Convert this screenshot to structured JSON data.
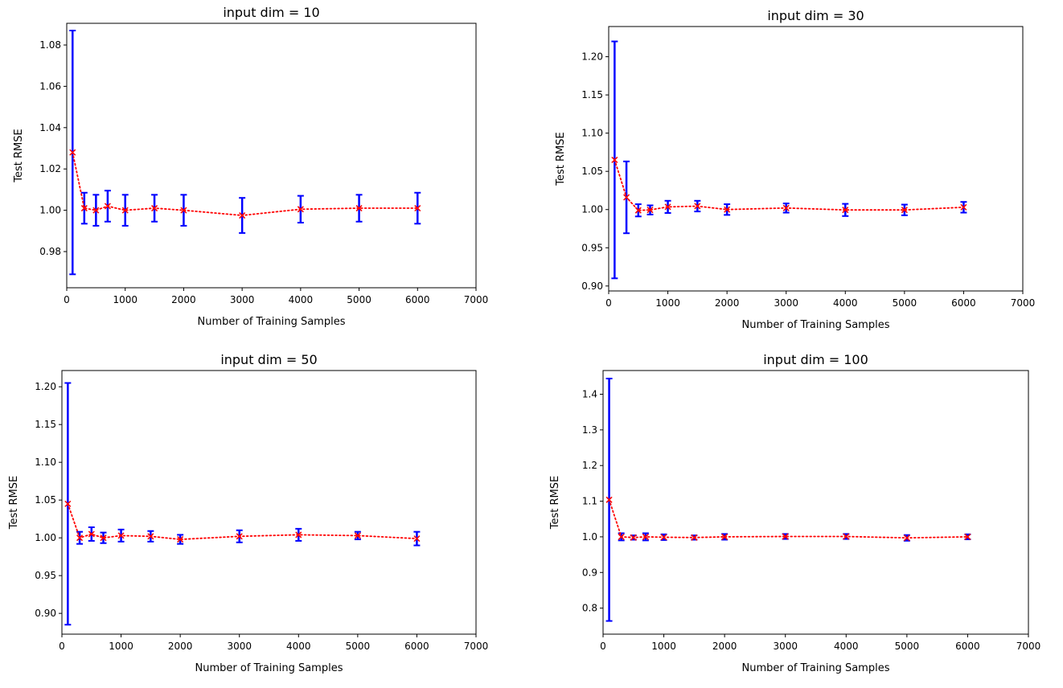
{
  "chart_data": [
    {
      "type": "scatter",
      "title": "input dim = 10",
      "xlabel": "Number of Training Samples",
      "ylabel": "Test RMSE",
      "xlim": [
        0,
        7000
      ],
      "ylim": [
        0.9625,
        1.0905
      ],
      "xticks": [
        "0",
        "1000",
        "2000",
        "3000",
        "4000",
        "5000",
        "6000",
        "7000"
      ],
      "yticks": [
        "0.98",
        "1.00",
        "1.02",
        "1.04",
        "1.06",
        "1.08"
      ],
      "grid": false,
      "marker_color": "#ff0000",
      "errorbar_color": "#0000ff",
      "series": [
        {
          "x": [
            100,
            300,
            500,
            700,
            1000,
            1500,
            2000,
            3000,
            4000,
            5000,
            6000
          ],
          "y": [
            1.028,
            1.001,
            1.0,
            1.002,
            1.0,
            1.001,
            1.0,
            0.9975,
            1.0005,
            1.001,
            1.001
          ],
          "err": [
            0.059,
            0.0075,
            0.0075,
            0.0075,
            0.0075,
            0.0065,
            0.0075,
            0.0085,
            0.0065,
            0.0065,
            0.0075
          ]
        }
      ]
    },
    {
      "type": "scatter",
      "title": "input dim = 30",
      "xlabel": "Number of Training Samples",
      "ylabel": "Test RMSE",
      "xlim": [
        0,
        7000
      ],
      "ylim": [
        0.8935,
        1.2395
      ],
      "xticks": [
        "0",
        "1000",
        "2000",
        "3000",
        "4000",
        "5000",
        "6000",
        "7000"
      ],
      "yticks": [
        "0.90",
        "0.95",
        "1.00",
        "1.05",
        "1.10",
        "1.15",
        "1.20"
      ],
      "grid": false,
      "marker_color": "#ff0000",
      "errorbar_color": "#0000ff",
      "series": [
        {
          "x": [
            100,
            300,
            500,
            700,
            1000,
            1500,
            2000,
            3000,
            4000,
            5000,
            6000
          ],
          "y": [
            1.065,
            1.016,
            0.999,
            0.9995,
            1.0035,
            1.0045,
            1.0,
            1.002,
            0.9995,
            0.9995,
            1.003
          ],
          "err": [
            0.155,
            0.047,
            0.008,
            0.006,
            0.008,
            0.007,
            0.007,
            0.006,
            0.008,
            0.007,
            0.007
          ]
        }
      ]
    },
    {
      "type": "scatter",
      "title": "input dim = 50",
      "xlabel": "Number of Training Samples",
      "ylabel": "Test RMSE",
      "xlim": [
        0,
        7000
      ],
      "ylim": [
        0.8725,
        1.2215
      ],
      "xticks": [
        "0",
        "1000",
        "2000",
        "3000",
        "4000",
        "5000",
        "6000",
        "7000"
      ],
      "yticks": [
        "0.90",
        "0.95",
        "1.00",
        "1.05",
        "1.10",
        "1.15",
        "1.20"
      ],
      "grid": false,
      "marker_color": "#ff0000",
      "errorbar_color": "#0000ff",
      "series": [
        {
          "x": [
            100,
            300,
            500,
            700,
            1000,
            1500,
            2000,
            3000,
            4000,
            5000,
            6000
          ],
          "y": [
            1.045,
            1.0,
            1.005,
            1.0,
            1.003,
            1.002,
            0.998,
            1.002,
            1.004,
            1.003,
            0.999
          ],
          "err": [
            0.16,
            0.008,
            0.009,
            0.007,
            0.008,
            0.007,
            0.006,
            0.008,
            0.008,
            0.005,
            0.009
          ]
        }
      ]
    },
    {
      "type": "scatter",
      "title": "input dim = 100",
      "xlabel": "Number of Training Samples",
      "ylabel": "Test RMSE",
      "xlim": [
        0,
        7000
      ],
      "ylim": [
        0.727,
        1.4665
      ],
      "xticks": [
        "0",
        "1000",
        "2000",
        "3000",
        "4000",
        "5000",
        "6000",
        "7000"
      ],
      "yticks": [
        "0.8",
        "0.9",
        "1.0",
        "1.1",
        "1.2",
        "1.3",
        "1.4"
      ],
      "grid": false,
      "marker_color": "#ff0000",
      "errorbar_color": "#0000ff",
      "series": [
        {
          "x": [
            100,
            300,
            500,
            700,
            1000,
            1500,
            2000,
            3000,
            4000,
            5000,
            6000
          ],
          "y": [
            1.104,
            1.0,
            0.998,
            1.0,
            0.999,
            0.998,
            1.0,
            1.001,
            1.001,
            0.997,
            1.0
          ],
          "err": [
            0.34,
            0.01,
            0.006,
            0.01,
            0.008,
            0.006,
            0.008,
            0.007,
            0.007,
            0.008,
            0.007
          ]
        }
      ]
    }
  ]
}
